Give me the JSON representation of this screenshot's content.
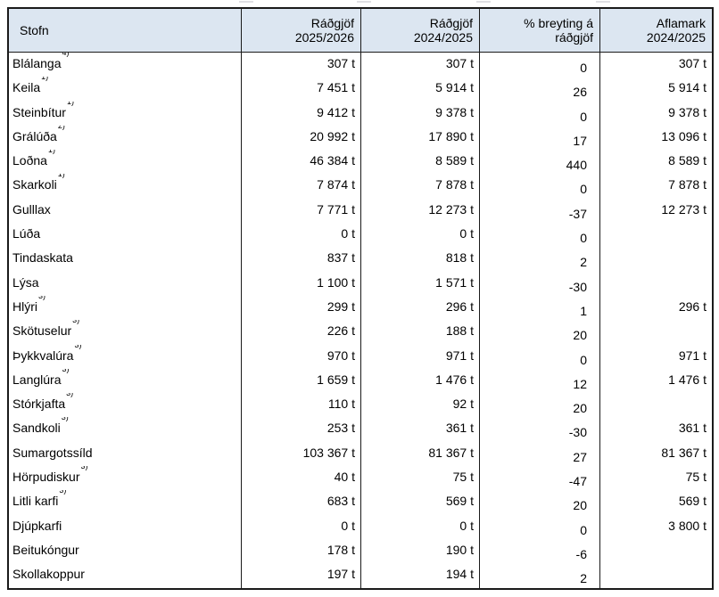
{
  "colors": {
    "header_bg": "#dce6f1",
    "border": "#1a1a1a",
    "text": "#000000",
    "page_bg": "#ffffff"
  },
  "table": {
    "columns": [
      {
        "line1": "Stofn",
        "line2": ""
      },
      {
        "line1": "Ráðgjöf",
        "line2": "2025/2026"
      },
      {
        "line1": "Ráðgjöf",
        "line2": "2024/2025"
      },
      {
        "line1": "% breyting á",
        "line2": "ráðgjöf"
      },
      {
        "line1": "Aflamark",
        "line2": "2024/2025"
      }
    ],
    "rows": [
      {
        "name": "Blálanga",
        "sup": "4)",
        "adv_2025_2026": "307 t",
        "adv_2024_2025": "307 t",
        "change_pct": "0",
        "quota_2024_2025": "307 t"
      },
      {
        "name": "Keila",
        "sup": "1)",
        "adv_2025_2026": "7 451 t",
        "adv_2024_2025": "5 914 t",
        "change_pct": "26",
        "quota_2024_2025": "5 914 t"
      },
      {
        "name": "Steinbítur",
        "sup": "1)",
        "adv_2025_2026": "9 412 t",
        "adv_2024_2025": "9 378 t",
        "change_pct": "0",
        "quota_2024_2025": "9 378 t"
      },
      {
        "name": "Grálúða",
        "sup": "2)",
        "adv_2025_2026": "20 992 t",
        "adv_2024_2025": "17 890 t",
        "change_pct": "17",
        "quota_2024_2025": "13 096 t"
      },
      {
        "name": "Loðna",
        "sup": "1)",
        "adv_2025_2026": "46 384 t",
        "adv_2024_2025": "8 589 t",
        "change_pct": "440",
        "quota_2024_2025": "8 589 t"
      },
      {
        "name": "Skarkoli",
        "sup": "1)",
        "adv_2025_2026": "7 874 t",
        "adv_2024_2025": "7 878 t",
        "change_pct": "0",
        "quota_2024_2025": "7 878 t"
      },
      {
        "name": "Gulllax",
        "sup": "",
        "adv_2025_2026": "7 771 t",
        "adv_2024_2025": "12 273 t",
        "change_pct": "-37",
        "quota_2024_2025": "12 273 t"
      },
      {
        "name": "Lúða",
        "sup": "",
        "adv_2025_2026": "0 t",
        "adv_2024_2025": "0 t",
        "change_pct": "0",
        "quota_2024_2025": ""
      },
      {
        "name": "Tindaskata",
        "sup": "",
        "adv_2025_2026": "837 t",
        "adv_2024_2025": "818 t",
        "change_pct": "2",
        "quota_2024_2025": ""
      },
      {
        "name": "Lýsa",
        "sup": "",
        "adv_2025_2026": "1 100 t",
        "adv_2024_2025": "1 571 t",
        "change_pct": "-30",
        "quota_2024_2025": ""
      },
      {
        "name": "Hlýri",
        "sup": "3)",
        "adv_2025_2026": "299 t",
        "adv_2024_2025": "296 t",
        "change_pct": "1",
        "quota_2024_2025": "296 t"
      },
      {
        "name": "Skötuselur",
        "sup": "3)",
        "adv_2025_2026": "226 t",
        "adv_2024_2025": "188 t",
        "change_pct": "20",
        "quota_2024_2025": ""
      },
      {
        "name": "Þykkvalúra",
        "sup": "3)",
        "adv_2025_2026": "970 t",
        "adv_2024_2025": "971 t",
        "change_pct": "0",
        "quota_2024_2025": "971 t"
      },
      {
        "name": "Langlúra",
        "sup": "3)",
        "adv_2025_2026": "1 659 t",
        "adv_2024_2025": "1 476 t",
        "change_pct": "12",
        "quota_2024_2025": "1 476 t"
      },
      {
        "name": "Stórkjafta",
        "sup": "3)",
        "adv_2025_2026": "110 t",
        "adv_2024_2025": "92 t",
        "change_pct": "20",
        "quota_2024_2025": ""
      },
      {
        "name": "Sandkoli",
        "sup": "3)",
        "adv_2025_2026": "253 t",
        "adv_2024_2025": "361 t",
        "change_pct": "-30",
        "quota_2024_2025": "361 t"
      },
      {
        "name": "Sumargotssíld",
        "sup": "",
        "adv_2025_2026": "103 367 t",
        "adv_2024_2025": "81 367 t",
        "change_pct": "27",
        "quota_2024_2025": "81 367 t"
      },
      {
        "name": "Hörpudiskur",
        "sup": "3)",
        "adv_2025_2026": "40 t",
        "adv_2024_2025": "75 t",
        "change_pct": "-47",
        "quota_2024_2025": "75 t"
      },
      {
        "name": "Litli karfi",
        "sup": "3)",
        "adv_2025_2026": "683 t",
        "adv_2024_2025": "569 t",
        "change_pct": "20",
        "quota_2024_2025": "569 t"
      },
      {
        "name": "Djúpkarfi",
        "sup": "",
        "adv_2025_2026": "0 t",
        "adv_2024_2025": "0 t",
        "change_pct": "0",
        "quota_2024_2025": "3 800 t"
      },
      {
        "name": "Beitukóngur",
        "sup": "",
        "adv_2025_2026": "178 t",
        "adv_2024_2025": "190 t",
        "change_pct": "-6",
        "quota_2024_2025": ""
      },
      {
        "name": "Skollakoppur",
        "sup": "",
        "adv_2025_2026": "197 t",
        "adv_2024_2025": "194 t",
        "change_pct": "2",
        "quota_2024_2025": ""
      }
    ]
  }
}
